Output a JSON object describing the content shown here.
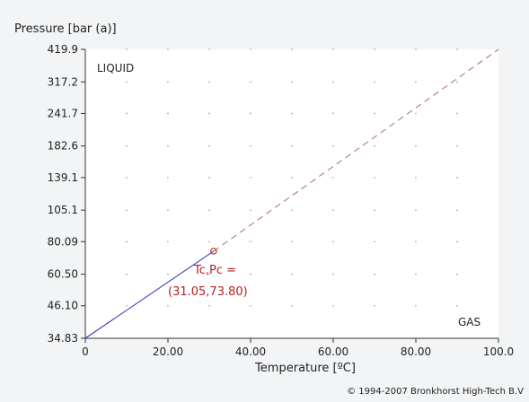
{
  "chart_data": {
    "type": "line",
    "ylabel": "Pressure [bar (a)]",
    "xlabel": "Temperature [ºC]",
    "xlim": [
      0,
      100
    ],
    "ylim": [
      34.83,
      419.9
    ],
    "y_scale": "log",
    "grid": "dotted",
    "x_ticks": [
      {
        "value": 0,
        "label": "0"
      },
      {
        "value": 20,
        "label": "20.00"
      },
      {
        "value": 40,
        "label": "40.00"
      },
      {
        "value": 60,
        "label": "60.00"
      },
      {
        "value": 80,
        "label": "80.00"
      },
      {
        "value": 100,
        "label": "100.0"
      }
    ],
    "y_ticks": [
      {
        "value": 34.83,
        "label": "34.83"
      },
      {
        "value": 46.1,
        "label": "46.10"
      },
      {
        "value": 60.5,
        "label": "60.50"
      },
      {
        "value": 80.09,
        "label": "80.09"
      },
      {
        "value": 105.1,
        "label": "105.1"
      },
      {
        "value": 139.1,
        "label": "139.1"
      },
      {
        "value": 182.6,
        "label": "182.6"
      },
      {
        "value": 241.7,
        "label": "241.7"
      },
      {
        "value": 317.2,
        "label": "317.2"
      },
      {
        "value": 419.9,
        "label": "419.9"
      }
    ],
    "series": [
      {
        "style": "solid",
        "color": "#3a3ac0",
        "x": [
          0,
          31.05
        ],
        "y": [
          34.83,
          73.8
        ]
      },
      {
        "style": "dashed",
        "color": "#b07878",
        "x": [
          31.05,
          100
        ],
        "y": [
          73.8,
          419.9
        ]
      }
    ],
    "critical_point": {
      "x": 31.05,
      "y": 73.8,
      "color": "#c0392b"
    },
    "annotations": [
      {
        "text": "LIQUID",
        "color": "#222222"
      },
      {
        "text": "GAS",
        "color": "#222222"
      },
      {
        "text": "Tc,Pc =",
        "color": "#b22222"
      },
      {
        "text": "(31.05,73.80)",
        "color": "#b22222"
      }
    ]
  },
  "copyright": "© 1994-2007 Bronkhorst High-Tech B.V"
}
